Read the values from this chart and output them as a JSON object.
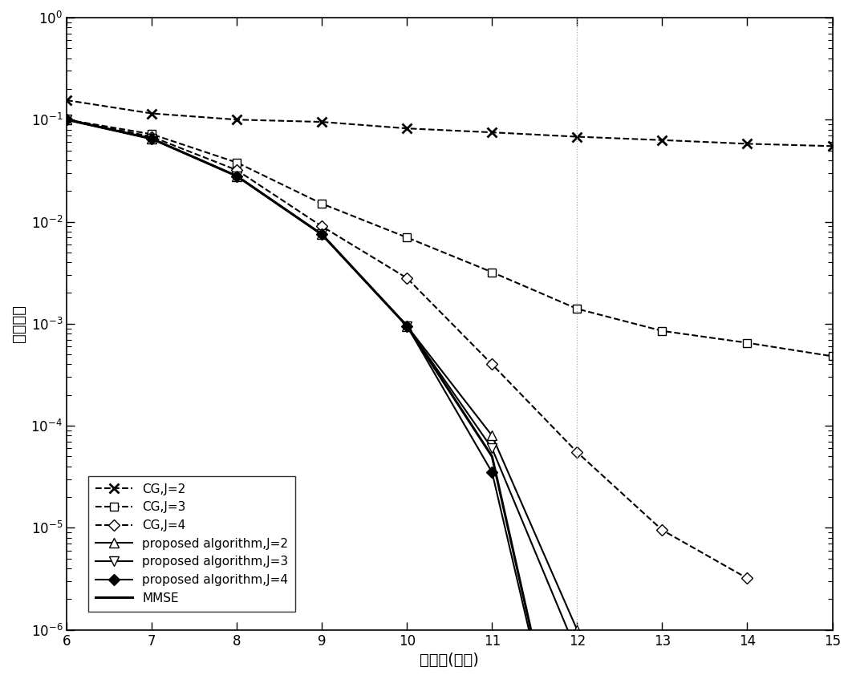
{
  "title": "",
  "xlabel": "信噪比(分贝)",
  "ylabel": "误比特率",
  "xlim": [
    6,
    15
  ],
  "ylim": [
    1e-06,
    1
  ],
  "xticks": [
    6,
    7,
    8,
    9,
    10,
    11,
    12,
    13,
    14,
    15
  ],
  "snr": [
    6,
    7,
    8,
    9,
    10,
    11,
    12,
    13,
    14,
    15
  ],
  "CG_J2": [
    0.155,
    0.115,
    0.1,
    0.095,
    0.082,
    0.075,
    0.068,
    0.063,
    0.058,
    0.055
  ],
  "CG_J3": [
    0.1,
    0.072,
    0.038,
    0.015,
    0.007,
    0.0032,
    0.0014,
    0.00085,
    0.00065,
    0.00048
  ],
  "CG_J4": [
    0.1,
    0.068,
    0.032,
    0.009,
    0.0028,
    0.0004,
    5.5e-05,
    9.5e-06,
    3.2e-06,
    null
  ],
  "prop_J2": [
    0.1,
    0.065,
    0.028,
    0.0075,
    0.00095,
    8e-05,
    1e-06,
    3e-08,
    1e-09,
    null
  ],
  "prop_J3": [
    0.1,
    0.065,
    0.028,
    0.0075,
    0.00095,
    6e-05,
    6e-07,
    1e-08,
    1e-09,
    null
  ],
  "prop_J4": [
    0.1,
    0.065,
    0.028,
    0.0075,
    0.00095,
    3.5e-05,
    9.5e-09,
    null,
    null,
    null
  ],
  "MMSE": [
    0.1,
    0.065,
    0.028,
    0.0075,
    0.00095,
    5e-05,
    9.5e-09,
    null,
    null,
    null
  ],
  "background_color": "#ffffff",
  "grid_color": "#aaaaaa",
  "line_color_black": "#000000",
  "legend_fontsize": 11,
  "axis_fontsize": 14,
  "tick_fontsize": 12
}
